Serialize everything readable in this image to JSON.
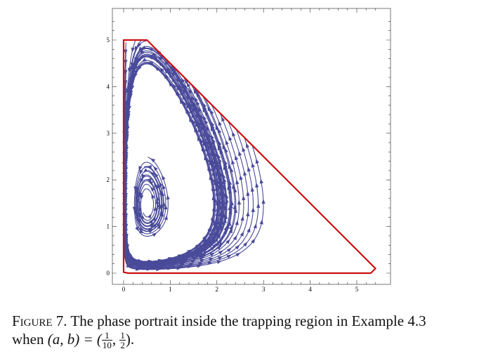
{
  "figure": {
    "label": "Figure 7.",
    "caption_text": "The phase portrait inside the trapping region in Example 4.3",
    "caption_when": "when",
    "caption_params": "(a, b) = (",
    "frac1_num": "1",
    "frac1_den": "10",
    "frac2_num": "1",
    "frac2_den": "2",
    "caption_end": ")."
  },
  "chart_data": {
    "type": "stream",
    "xlim": [
      0,
      5.5
    ],
    "ylim": [
      0,
      5.5
    ],
    "x_ticks": [
      "0",
      "1",
      "2",
      "3",
      "4",
      "5"
    ],
    "y_ticks": [
      "0",
      "1",
      "2",
      "3",
      "4",
      "5"
    ],
    "trapping_region": [
      [
        0,
        0.02
      ],
      [
        0,
        5
      ],
      [
        0.5,
        5
      ],
      [
        5.4,
        0.1
      ],
      [
        5.3,
        0
      ],
      [
        0.1,
        0
      ]
    ],
    "region_color": "#cc1111",
    "stream_color": "#4a4a9a"
  }
}
